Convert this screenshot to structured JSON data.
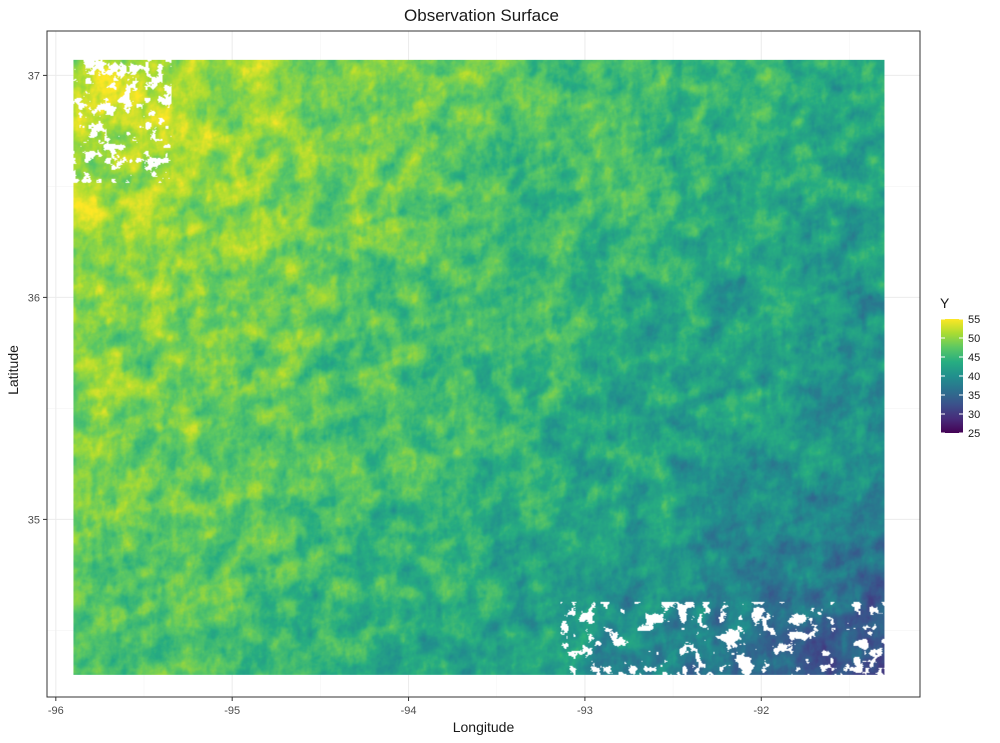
{
  "chart_data": {
    "type": "heatmap",
    "title": "Observation Surface",
    "xlabel": "Longitude",
    "ylabel": "Latitude",
    "xlim": [
      -96.05,
      -91.1
    ],
    "ylim": [
      34.2,
      37.2
    ],
    "x_extent": [
      -95.9,
      -91.3
    ],
    "y_extent": [
      34.3,
      37.07
    ],
    "x_ticks": [
      -96,
      -95,
      -94,
      -93,
      -92
    ],
    "y_ticks": [
      35,
      36,
      37
    ],
    "x_tick_labels": [
      "-96",
      "-95",
      "-94",
      "-93",
      "-92"
    ],
    "y_tick_labels": [
      "35",
      "36",
      "37"
    ],
    "grid": true,
    "legend": {
      "title": "Y",
      "position": "right",
      "range": [
        25,
        55
      ],
      "breaks": [
        55,
        50,
        45,
        40,
        35,
        30,
        25
      ],
      "break_labels": [
        "55",
        "50",
        "45",
        "40",
        "35",
        "30",
        "25"
      ],
      "colormap": "viridis"
    },
    "value_field": {
      "description_of_gradient": "higher values (yellow, ~52-55) in the west/northwest, decreasing toward southeast (~30-38, dark blue/purple)",
      "west_value": 53,
      "east_value": 38,
      "southeast_min": 27
    }
  },
  "colors": {
    "panel_border": "#333333",
    "grid_major": "#ebebeb",
    "grid_minor": "#f5f5f5",
    "viridis": [
      "#440154",
      "#472c7a",
      "#3b518b",
      "#2c718e",
      "#21908d",
      "#27ad81",
      "#5cc863",
      "#aadc32",
      "#fde725"
    ]
  }
}
